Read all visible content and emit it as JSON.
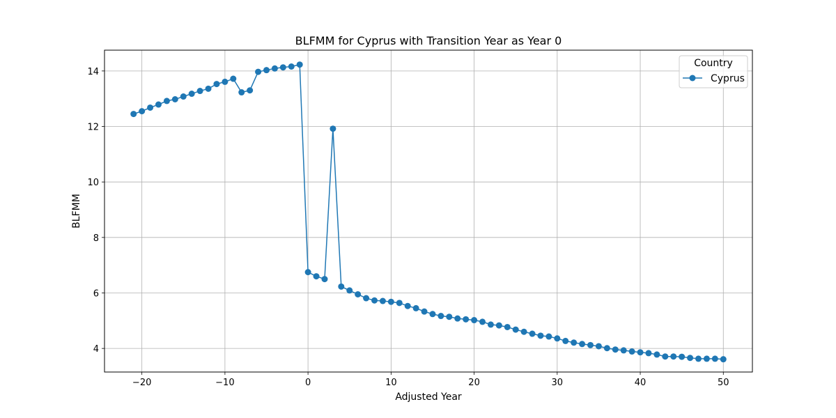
{
  "chart_data": {
    "type": "line",
    "title": "BLFMM for Cyprus with Transition Year as Year 0",
    "xlabel": "Adjusted Year",
    "ylabel": "BLFMM",
    "xlim": [
      -24.5,
      53.5
    ],
    "ylim": [
      3.15,
      14.75
    ],
    "xticks": [
      -20,
      -10,
      0,
      10,
      20,
      30,
      40,
      50
    ],
    "xtick_labels": [
      "−20",
      "−10",
      "0",
      "10",
      "20",
      "30",
      "40",
      "50"
    ],
    "yticks": [
      4,
      6,
      8,
      10,
      12,
      14
    ],
    "ytick_labels": [
      "4",
      "6",
      "8",
      "10",
      "12",
      "14"
    ],
    "grid": true,
    "legend": {
      "title": "Country",
      "placement": "top-right"
    },
    "series": [
      {
        "name": "Cyprus",
        "color": "#1f77b4",
        "marker": "circle",
        "x": [
          -21,
          -20,
          -19,
          -18,
          -17,
          -16,
          -15,
          -14,
          -13,
          -12,
          -11,
          -10,
          -9,
          -8,
          -7,
          -6,
          -5,
          -4,
          -3,
          -2,
          -1,
          0,
          1,
          2,
          3,
          4,
          5,
          6,
          7,
          8,
          9,
          10,
          11,
          12,
          13,
          14,
          15,
          16,
          17,
          18,
          19,
          20,
          21,
          22,
          23,
          24,
          25,
          26,
          27,
          28,
          29,
          30,
          31,
          32,
          33,
          34,
          35,
          36,
          37,
          38,
          39,
          40,
          41,
          42,
          43,
          44,
          45,
          46,
          47,
          48,
          49,
          50
        ],
        "y": [
          12.45,
          12.55,
          12.68,
          12.79,
          12.92,
          12.98,
          13.08,
          13.18,
          13.28,
          13.36,
          13.53,
          13.61,
          13.72,
          13.23,
          13.3,
          13.97,
          14.03,
          14.09,
          14.13,
          14.16,
          14.23,
          6.75,
          6.6,
          6.5,
          11.92,
          6.23,
          6.09,
          5.95,
          5.81,
          5.73,
          5.71,
          5.68,
          5.64,
          5.53,
          5.45,
          5.33,
          5.24,
          5.17,
          5.14,
          5.08,
          5.05,
          5.02,
          4.96,
          4.86,
          4.83,
          4.77,
          4.68,
          4.6,
          4.53,
          4.46,
          4.43,
          4.36,
          4.27,
          4.21,
          4.16,
          4.12,
          4.08,
          4.01,
          3.96,
          3.93,
          3.89,
          3.86,
          3.83,
          3.78,
          3.71,
          3.71,
          3.7,
          3.66,
          3.63,
          3.63,
          3.63,
          3.61
        ]
      }
    ]
  }
}
